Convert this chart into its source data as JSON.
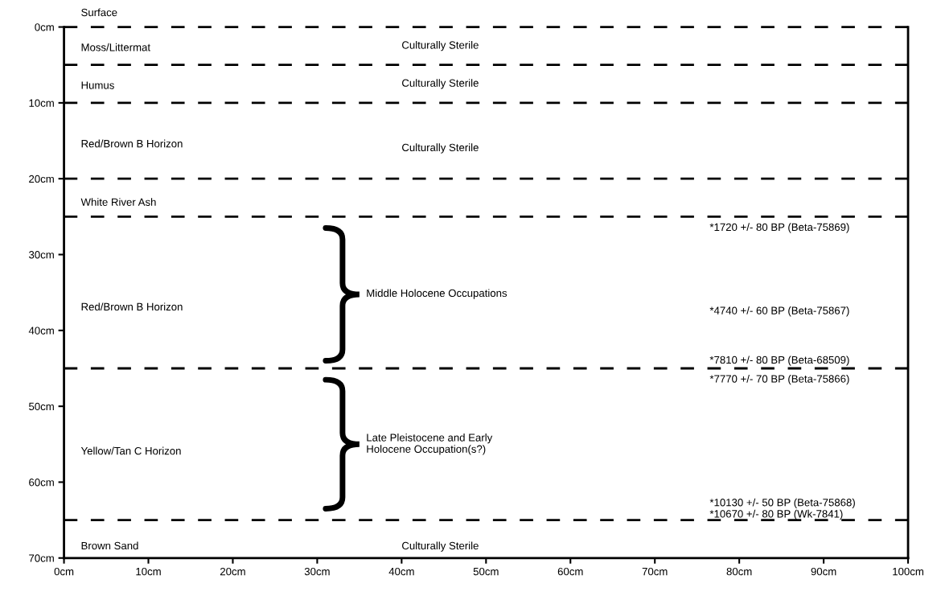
{
  "chart_data": {
    "type": "line",
    "line_style": "dashed",
    "xlim": [
      0,
      100
    ],
    "ylim": [
      70,
      0
    ],
    "xticks": [
      {
        "value": 0,
        "label": "0cm"
      },
      {
        "value": 10,
        "label": "10cm"
      },
      {
        "value": 20,
        "label": "20cm"
      },
      {
        "value": 30,
        "label": "30cm"
      },
      {
        "value": 40,
        "label": "40cm"
      },
      {
        "value": 50,
        "label": "50cm"
      },
      {
        "value": 60,
        "label": "60cm"
      },
      {
        "value": 70,
        "label": "70cm"
      },
      {
        "value": 80,
        "label": "80cm"
      },
      {
        "value": 90,
        "label": "90cm"
      },
      {
        "value": 100,
        "label": "100cm"
      }
    ],
    "yticks": [
      {
        "value": 0,
        "label": "0cm"
      },
      {
        "value": 10,
        "label": "10cm"
      },
      {
        "value": 20,
        "label": "20cm"
      },
      {
        "value": 30,
        "label": "30cm"
      },
      {
        "value": 40,
        "label": "40cm"
      },
      {
        "value": 50,
        "label": "50cm"
      },
      {
        "value": 60,
        "label": "60cm"
      },
      {
        "value": 70,
        "label": "70cm"
      }
    ],
    "x": [
      0,
      100
    ],
    "series": [
      {
        "color": "#000000",
        "values": [
          0,
          0
        ]
      },
      {
        "color": "#000000",
        "values": [
          5,
          5
        ]
      },
      {
        "color": "#000000",
        "values": [
          10,
          10
        ]
      },
      {
        "color": "#000000",
        "values": [
          20,
          20
        ]
      },
      {
        "color": "#000000",
        "values": [
          25,
          25
        ]
      },
      {
        "color": "#000000",
        "values": [
          45,
          45
        ]
      },
      {
        "color": "#000000",
        "values": [
          65,
          65
        ]
      }
    ],
    "annotations": [
      "Surface",
      "Moss/Littermat",
      "Humus",
      "Red/Brown B Horizon",
      "White River Ash",
      "Red/Brown B Horizon",
      "Yellow/Tan C Horizon",
      "Brown Sand",
      "Culturally Sterile",
      "Culturally Sterile",
      "Culturally Sterile",
      "Culturally Sterile",
      "Middle Holocene Occupations",
      "Late Pleistocene and Early\nHolocene Occupation(s?)",
      "*1720 +/- 80 BP (Beta-75869)",
      "*4740 +/- 60 BP (Beta-75867)",
      "*7810 +/- 80 BP (Beta-68509)",
      "*7770 +/- 70 BP (Beta-75866)",
      "*10130 +/- 50 BP (Beta-75868)",
      "*10670 +/- 80 BP (Wk-7841)"
    ]
  }
}
